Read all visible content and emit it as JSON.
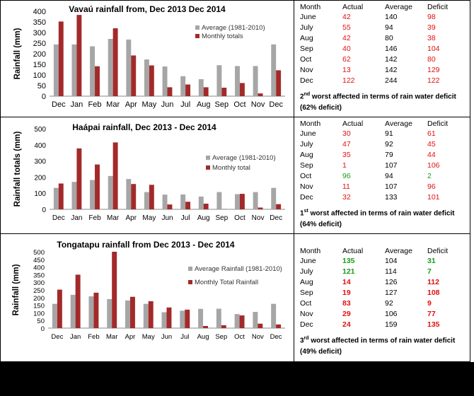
{
  "chart_data": [
    {
      "type": "bar",
      "title": "Vavaú rainfall from, Dec 2013 Dec 2014",
      "xlabel": "",
      "ylabel": "Rainfall (mm)",
      "ylim": [
        0,
        400
      ],
      "yticks": [
        0,
        50,
        100,
        150,
        200,
        250,
        300,
        350,
        400
      ],
      "categories": [
        "Dec",
        "Jan",
        "Feb",
        "Mar",
        "Apr",
        "May",
        "Jun",
        "Jul",
        "Aug",
        "Sep",
        "Oct",
        "Nov",
        "Dec"
      ],
      "series": [
        {
          "name": "Average (1981-2010)",
          "color": "#a6a6a6",
          "values": [
            244,
            244,
            235,
            270,
            267,
            173,
            140,
            94,
            80,
            146,
            142,
            142,
            244
          ]
        },
        {
          "name": "Monthly totals",
          "color": "#a32a2a",
          "values": [
            352,
            383,
            141,
            320,
            192,
            145,
            42,
            55,
            42,
            40,
            62,
            13,
            122
          ]
        }
      ],
      "legend_position": "right"
    },
    {
      "type": "bar",
      "title": "Haápai rainfall,  Dec  2013 - Dec 2014",
      "xlabel": "",
      "ylabel": "Rainfall totals (mm)",
      "ylim": [
        0,
        500
      ],
      "yticks": [
        0,
        100,
        200,
        300,
        400,
        500
      ],
      "categories": [
        "Dec",
        "Jan",
        "Feb",
        "Mar",
        "Apr",
        "May",
        "Jun",
        "Jul",
        "Aug",
        "Sep",
        "Oct",
        "Nov",
        "Dec"
      ],
      "series": [
        {
          "name": "Average (1981-2010)",
          "color": "#a6a6a6",
          "values": [
            133,
            170,
            182,
            207,
            188,
            107,
            91,
            92,
            79,
            107,
            94,
            107,
            133
          ]
        },
        {
          "name": "Monthly total",
          "color": "#a32a2a",
          "values": [
            160,
            378,
            278,
            415,
            157,
            152,
            30,
            47,
            35,
            1,
            96,
            11,
            32
          ]
        }
      ],
      "legend_position": "right"
    },
    {
      "type": "bar",
      "title": "Tongatapu rainfall from Dec 2013 - Dec 2014",
      "xlabel": "",
      "ylabel": "Rainfall (mm)",
      "ylim": [
        0,
        500
      ],
      "yticks": [
        0,
        50,
        100,
        150,
        200,
        250,
        300,
        350,
        400,
        450,
        500
      ],
      "categories": [
        "Dec",
        "Jan",
        "Feb",
        "Mar",
        "Apr",
        "May",
        "Jun",
        "Jul",
        "Aug",
        "Sep",
        "Oct",
        "Nov",
        "Dec"
      ],
      "series": [
        {
          "name": "Average Rainfall (1981-2010)",
          "color": "#a6a6a6",
          "values": [
            159,
            218,
            208,
            190,
            181,
            159,
            104,
            114,
            126,
            127,
            92,
            106,
            159
          ]
        },
        {
          "name": "Monthly Total Rainfall",
          "color": "#a32a2a",
          "values": [
            252,
            350,
            232,
            500,
            205,
            176,
            135,
            121,
            14,
            19,
            83,
            29,
            24
          ]
        }
      ],
      "legend_position": "right"
    }
  ],
  "tables": [
    {
      "headers": [
        "Month",
        "Actual",
        "Average",
        "Deficit"
      ],
      "rows": [
        {
          "month": "June",
          "actual": "42",
          "average": "140",
          "deficit": "98"
        },
        {
          "month": "July",
          "actual": "55",
          "average": "94",
          "deficit": "39"
        },
        {
          "month": "Aug",
          "actual": "42",
          "average": "80",
          "deficit": "38"
        },
        {
          "month": "Sep",
          "actual": "40",
          "average": "146",
          "deficit": "104"
        },
        {
          "month": "Oct",
          "actual": "62",
          "average": "142",
          "deficit": "80"
        },
        {
          "month": "Nov",
          "actual": "13",
          "average": "142",
          "deficit": "129"
        },
        {
          "month": "Dec",
          "actual": "122",
          "average": "244",
          "deficit": "122"
        }
      ],
      "note_ordinal": "2",
      "note_suffix": "nd",
      "note_text": " worst affected in terms of rain water deficit (62% deficit)"
    },
    {
      "headers": [
        "Month",
        "Actual",
        "Average",
        "Deficit"
      ],
      "rows": [
        {
          "month": "June",
          "actual": "30",
          "average": "91",
          "deficit": "61"
        },
        {
          "month": "July",
          "actual": "47",
          "average": "92",
          "deficit": "45"
        },
        {
          "month": "Aug",
          "actual": "35",
          "average": "79",
          "deficit": "44"
        },
        {
          "month": "Sep",
          "actual": "1",
          "average": "107",
          "deficit": "106"
        },
        {
          "month": "Oct",
          "actual": "96",
          "average": "94",
          "deficit": "2"
        },
        {
          "month": "Nov",
          "actual": "11",
          "average": "107",
          "deficit": "96"
        },
        {
          "month": "Dec",
          "actual": "32",
          "average": "133",
          "deficit": "101"
        }
      ],
      "note_ordinal": "1",
      "note_suffix": "st",
      "note_text": " worst affected in terms of rain water deficit (64% deficit)"
    },
    {
      "headers": [
        "Month",
        "Actual",
        "Average",
        "Deficit"
      ],
      "rows": [
        {
          "month": "June",
          "actual": "135",
          "average": "104",
          "deficit": "31"
        },
        {
          "month": "July",
          "actual": "121",
          "average": "114",
          "deficit": "7"
        },
        {
          "month": "Aug",
          "actual": "14",
          "average": "126",
          "deficit": "112"
        },
        {
          "month": "Sep",
          "actual": "19",
          "average": "127",
          "deficit": "108"
        },
        {
          "month": "Oct",
          "actual": "83",
          "average": "92",
          "deficit": "9"
        },
        {
          "month": "Nov",
          "actual": "29",
          "average": "106",
          "deficit": "77"
        },
        {
          "month": "Dec",
          "actual": "24",
          "average": "159",
          "deficit": "135"
        }
      ],
      "note_ordinal": "3",
      "note_suffix": "rd",
      "note_text": " worst affected in terms of rain water deficit (49% deficit)"
    }
  ],
  "colors": {
    "surplus": "#1a9a1a",
    "deficit": "#e01010",
    "average_bar": "#a6a6a6",
    "monthly_bar": "#a32a2a"
  }
}
